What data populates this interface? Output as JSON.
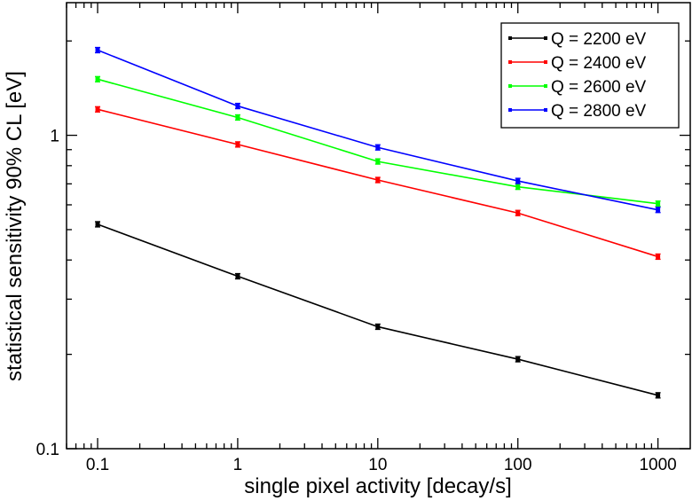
{
  "chart_data": {
    "type": "line",
    "xscale": "log",
    "yscale": "log",
    "xlabel": "single pixel activity [decay/s]",
    "ylabel": "statistical sensitivity 90% CL [eV]",
    "xlim": [
      0.06,
      1700
    ],
    "ylim": [
      0.1,
      2.65
    ],
    "x": [
      0.1,
      1,
      10,
      100,
      1000
    ],
    "xtick_labels": [
      "0.1",
      "1",
      "10",
      "100",
      "1000"
    ],
    "yticks": [
      0.1,
      1
    ],
    "ytick_labels": [
      "0.1",
      "1"
    ],
    "legend_position": "top-right",
    "series": [
      {
        "name": "Q = 2200 eV",
        "color": "#000000",
        "values": [
          0.52,
          0.355,
          0.245,
          0.193,
          0.148
        ],
        "err": [
          0.008,
          0.005,
          0.004,
          0.003,
          0.002
        ]
      },
      {
        "name": "Q = 2400 eV",
        "color": "#ff0000",
        "values": [
          1.21,
          0.935,
          0.72,
          0.565,
          0.41
        ],
        "err": [
          0.017,
          0.013,
          0.01,
          0.008,
          0.006
        ]
      },
      {
        "name": "Q = 2600 eV",
        "color": "#00ff00",
        "values": [
          1.51,
          1.14,
          0.825,
          0.685,
          0.605
        ],
        "err": [
          0.02,
          0.015,
          0.011,
          0.009,
          0.008
        ]
      },
      {
        "name": "Q = 2800 eV",
        "color": "#0000ff",
        "values": [
          1.87,
          1.24,
          0.915,
          0.715,
          0.578
        ],
        "err": [
          0.025,
          0.017,
          0.012,
          0.01,
          0.008
        ]
      }
    ]
  }
}
